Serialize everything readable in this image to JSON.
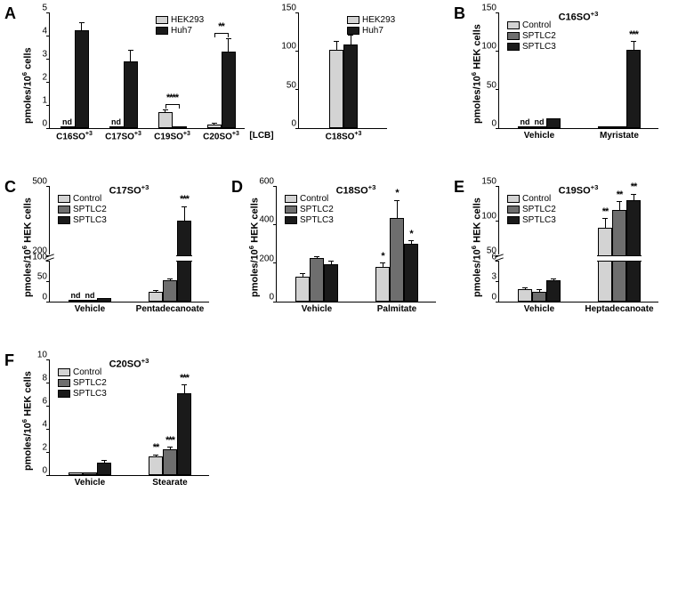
{
  "colors": {
    "light": "#d3d3d3",
    "mid": "#6e6e6e",
    "dark": "#1a1a1a",
    "black": "#000000",
    "white": "#ffffff"
  },
  "panels": {
    "A": {
      "label": "A",
      "left": {
        "type": "bar",
        "ylabel": "pmoles/10⁶ cells",
        "ylim": [
          0,
          5.0
        ],
        "yticks": [
          0,
          1.0,
          2.0,
          3.0,
          4.0,
          5.0
        ],
        "categories": [
          "C16SO⁺³",
          "C17SO⁺³",
          "C19SO⁺³",
          "C20SO⁺³"
        ],
        "xlabel_suffix": "[LCB]",
        "legend": [
          [
            "light",
            "HEK293"
          ],
          [
            "dark",
            "Huh7"
          ]
        ],
        "groups": [
          {
            "bars": [
              {
                "v": 0,
                "c": "light",
                "nd": true
              },
              {
                "v": 4.25,
                "e": 0.3,
                "c": "dark"
              }
            ]
          },
          {
            "bars": [
              {
                "v": 0,
                "c": "light",
                "nd": true
              },
              {
                "v": 2.9,
                "e": 0.45,
                "c": "dark"
              }
            ]
          },
          {
            "bars": [
              {
                "v": 0.7,
                "e": 0.08,
                "c": "light"
              },
              {
                "v": 0.02,
                "c": "dark"
              }
            ],
            "sig": "****",
            "bracket": true
          },
          {
            "bars": [
              {
                "v": 0.15,
                "e": 0.05,
                "c": "light"
              },
              {
                "v": 3.3,
                "e": 0.55,
                "c": "dark"
              }
            ],
            "sig": "**",
            "bracket": true
          }
        ]
      },
      "right": {
        "type": "bar",
        "ylim": [
          0,
          150
        ],
        "yticks": [
          0,
          50,
          100,
          150
        ],
        "categories": [
          "C18SO⁺³"
        ],
        "legend": [
          [
            "light",
            "HEK293"
          ],
          [
            "dark",
            "Huh7"
          ]
        ],
        "groups": [
          {
            "bars": [
              {
                "v": 102,
                "e": 10,
                "c": "light"
              },
              {
                "v": 108,
                "e": 13,
                "c": "dark"
              }
            ]
          }
        ]
      }
    },
    "B": {
      "label": "B",
      "title": "C16SO⁺³",
      "ylabel": "pmoles/10⁶ HEK cells",
      "ylim": [
        0,
        150
      ],
      "yticks": [
        0,
        50,
        100,
        150
      ],
      "categories": [
        "Vehicle",
        "Myristate"
      ],
      "legend": [
        [
          "light",
          "Control"
        ],
        [
          "mid",
          "SPTLC2"
        ],
        [
          "dark",
          "SPTLC3"
        ]
      ],
      "groups": [
        {
          "bars": [
            {
              "v": 0,
              "c": "light",
              "nd": true
            },
            {
              "v": 0,
              "c": "mid",
              "nd": true
            },
            {
              "v": 13,
              "e": 0,
              "c": "dark"
            }
          ]
        },
        {
          "bars": [
            {
              "v": 2,
              "c": "light"
            },
            {
              "v": 2,
              "c": "mid"
            },
            {
              "v": 102,
              "e": 10,
              "c": "dark",
              "sig": "***"
            }
          ]
        }
      ]
    },
    "C": {
      "label": "C",
      "title": "C17SO⁺³",
      "ylabel": "pmoles/10⁶ HEK cells",
      "ylim": [
        0,
        500
      ],
      "break": {
        "below": 100,
        "above": 200
      },
      "yticks_low": [
        0,
        50,
        100
      ],
      "yticks_high": [
        200,
        500
      ],
      "categories": [
        "Vehicle",
        "Pentadecanoate"
      ],
      "legend": [
        [
          "light",
          "Control"
        ],
        [
          "mid",
          "SPTLC2"
        ],
        [
          "dark",
          "SPTLC3"
        ]
      ],
      "groups": [
        {
          "bars": [
            {
              "v": 0,
              "c": "light",
              "nd": true
            },
            {
              "v": 0,
              "c": "mid",
              "nd": true
            },
            {
              "v": 8,
              "c": "dark"
            }
          ]
        },
        {
          "bars": [
            {
              "v": 25,
              "e": 3,
              "c": "light"
            },
            {
              "v": 52,
              "e": 5,
              "c": "mid"
            },
            {
              "v": 350,
              "e": 60,
              "c": "dark",
              "sig": "***"
            }
          ]
        }
      ]
    },
    "D": {
      "label": "D",
      "title": "C18SO⁺³",
      "ylabel": "pmoles/10⁶ HEK cells",
      "ylim": [
        0,
        600
      ],
      "yticks": [
        0,
        200,
        400,
        600
      ],
      "categories": [
        "Vehicle",
        "Palmitate"
      ],
      "legend": [
        [
          "light",
          "Control"
        ],
        [
          "mid",
          "SPTLC2"
        ],
        [
          "dark",
          "SPTLC3"
        ]
      ],
      "groups": [
        {
          "bars": [
            {
              "v": 130,
              "e": 15,
              "c": "light"
            },
            {
              "v": 225,
              "e": 10,
              "c": "mid"
            },
            {
              "v": 195,
              "e": 15,
              "c": "dark"
            }
          ]
        },
        {
          "bars": [
            {
              "v": 180,
              "e": 20,
              "c": "light",
              "sig": "*"
            },
            {
              "v": 435,
              "e": 90,
              "c": "mid",
              "sig": "*"
            },
            {
              "v": 300,
              "e": 15,
              "c": "dark",
              "sig": "*"
            }
          ]
        }
      ]
    },
    "E": {
      "label": "E",
      "title": "C19SO⁺³",
      "ylabel": "pmoles/10⁶ HEK cells",
      "ylim": [
        0,
        150
      ],
      "break": {
        "below": 6,
        "above": 50
      },
      "yticks_low": [
        0,
        3,
        6
      ],
      "yticks_high": [
        50,
        100,
        150
      ],
      "categories": [
        "Vehicle",
        "Heptadecanoate"
      ],
      "legend": [
        [
          "light",
          "Control"
        ],
        [
          "mid",
          "SPTLC2"
        ],
        [
          "dark",
          "SPTLC3"
        ]
      ],
      "groups": [
        {
          "bars": [
            {
              "v": 1.8,
              "e": 0.3,
              "c": "light"
            },
            {
              "v": 1.5,
              "e": 0.3,
              "c": "mid"
            },
            {
              "v": 3.2,
              "e": 0.2,
              "c": "dark"
            }
          ]
        },
        {
          "bars": [
            {
              "v": 90,
              "e": 13,
              "c": "light",
              "sig": "**"
            },
            {
              "v": 115,
              "e": 12,
              "c": "mid",
              "sig": "**"
            },
            {
              "v": 130,
              "e": 8,
              "c": "dark",
              "sig": "**"
            }
          ]
        }
      ]
    },
    "F": {
      "label": "F",
      "title": "C20SO⁺³",
      "ylabel": "pmoles/10⁶ HEK cells",
      "ylim": [
        0,
        10
      ],
      "yticks": [
        0,
        2,
        4,
        6,
        8,
        10
      ],
      "categories": [
        "Vehicle",
        "Stearate"
      ],
      "legend": [
        [
          "light",
          "Control"
        ],
        [
          "mid",
          "SPTLC2"
        ],
        [
          "dark",
          "SPTLC3"
        ]
      ],
      "groups": [
        {
          "bars": [
            {
              "v": 0.2,
              "c": "light"
            },
            {
              "v": 0.25,
              "c": "mid"
            },
            {
              "v": 1.05,
              "e": 0.25,
              "c": "dark"
            }
          ]
        },
        {
          "bars": [
            {
              "v": 1.6,
              "e": 0.15,
              "c": "light",
              "sig": "**"
            },
            {
              "v": 2.2,
              "e": 0.2,
              "c": "mid",
              "sig": "***"
            },
            {
              "v": 7.1,
              "e": 0.7,
              "c": "dark",
              "sig": "***"
            }
          ]
        }
      ]
    }
  }
}
